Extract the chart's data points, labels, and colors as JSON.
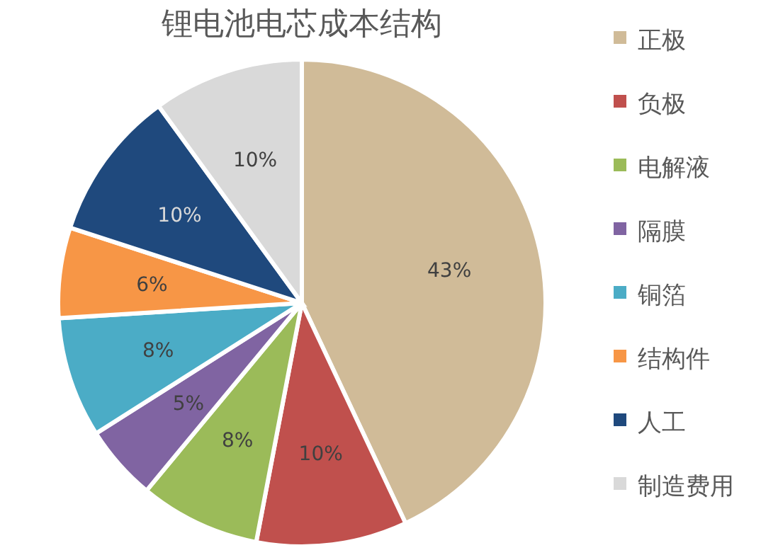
{
  "chart_data": {
    "type": "pie",
    "title": "锂电池电芯成本结构",
    "categories": [
      "正极",
      "负极",
      "电解液",
      "隔膜",
      "铜箔",
      "结构件",
      "人工",
      "制造费用"
    ],
    "values": [
      43,
      10,
      8,
      5,
      8,
      6,
      10,
      10
    ],
    "colors": [
      "#d0bb98",
      "#c0504d",
      "#9bbb59",
      "#8064a2",
      "#4bacc6",
      "#f79646",
      "#1f497d",
      "#d9d9d9"
    ],
    "value_labels": [
      "43%",
      "10%",
      "8%",
      "5%",
      "8%",
      "6%",
      "10%",
      "10%"
    ],
    "legend": "right"
  }
}
